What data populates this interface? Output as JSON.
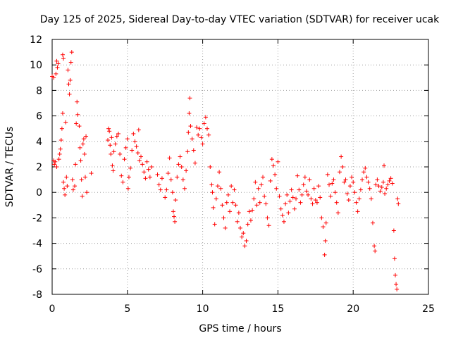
{
  "chart_data": {
    "type": "scatter",
    "title": "Day 125 of 2025, Sidereal Day-to-day VTEC variation (SDTVAR) for receiver ucak",
    "xlabel": "GPS time / hours",
    "ylabel": "SDTVAR / TECUs",
    "xlim": [
      0,
      25
    ],
    "ylim": [
      -8,
      12
    ],
    "xticks": [
      "0",
      "5",
      "10",
      "15",
      "20",
      "25"
    ],
    "yticks": [
      "12",
      "10",
      "8",
      "6",
      "4",
      "2",
      "0",
      "-2",
      "-4",
      "-6",
      "-8"
    ],
    "grid": true,
    "marker": "+",
    "color": "#ff0000",
    "series": [
      {
        "name": "SDTVAR",
        "points": [
          [
            0.0,
            9.1
          ],
          [
            0.1,
            9.0
          ],
          [
            0.1,
            2.5
          ],
          [
            0.15,
            2.2
          ],
          [
            0.2,
            2.4
          ],
          [
            0.25,
            9.3
          ],
          [
            0.3,
            10.3
          ],
          [
            0.3,
            2.0
          ],
          [
            0.35,
            9.8
          ],
          [
            0.4,
            10.1
          ],
          [
            0.45,
            2.6
          ],
          [
            0.5,
            3.0
          ],
          [
            0.55,
            3.4
          ],
          [
            0.6,
            4.1
          ],
          [
            0.65,
            5.0
          ],
          [
            0.7,
            6.2
          ],
          [
            0.7,
            10.8
          ],
          [
            0.75,
            10.5
          ],
          [
            0.75,
            0.8
          ],
          [
            0.8,
            0.3
          ],
          [
            0.85,
            -0.2
          ],
          [
            0.9,
            5.5
          ],
          [
            0.95,
            1.2
          ],
          [
            1.0,
            0.5
          ],
          [
            1.05,
            9.6
          ],
          [
            1.1,
            8.5
          ],
          [
            1.15,
            7.7
          ],
          [
            1.2,
            8.8
          ],
          [
            1.25,
            10.2
          ],
          [
            1.3,
            11.0
          ],
          [
            1.35,
            1.0
          ],
          [
            1.4,
            0.2
          ],
          [
            1.5,
            0.5
          ],
          [
            1.55,
            2.2
          ],
          [
            1.6,
            5.4
          ],
          [
            1.65,
            7.1
          ],
          [
            1.7,
            6.1
          ],
          [
            1.8,
            5.2
          ],
          [
            1.85,
            3.5
          ],
          [
            1.9,
            2.5
          ],
          [
            1.95,
            1.0
          ],
          [
            2.0,
            -0.3
          ],
          [
            2.05,
            3.8
          ],
          [
            2.1,
            4.2
          ],
          [
            2.15,
            3.0
          ],
          [
            2.2,
            1.2
          ],
          [
            2.25,
            4.4
          ],
          [
            2.3,
            0.0
          ],
          [
            2.6,
            1.5
          ],
          [
            3.7,
            4.1
          ],
          [
            3.75,
            5.0
          ],
          [
            3.8,
            4.8
          ],
          [
            3.85,
            3.7
          ],
          [
            3.9,
            3.0
          ],
          [
            3.95,
            4.3
          ],
          [
            4.0,
            2.1
          ],
          [
            4.05,
            1.7
          ],
          [
            4.1,
            3.2
          ],
          [
            4.2,
            3.8
          ],
          [
            4.3,
            4.4
          ],
          [
            4.4,
            4.6
          ],
          [
            4.5,
            3.0
          ],
          [
            4.6,
            1.3
          ],
          [
            4.7,
            0.8
          ],
          [
            4.8,
            2.6
          ],
          [
            4.9,
            3.5
          ],
          [
            5.0,
            4.2
          ],
          [
            5.05,
            0.3
          ],
          [
            5.1,
            1.2
          ],
          [
            5.2,
            1.9
          ],
          [
            5.3,
            3.3
          ],
          [
            5.4,
            4.6
          ],
          [
            5.5,
            4.0
          ],
          [
            5.6,
            3.6
          ],
          [
            5.7,
            3.1
          ],
          [
            5.75,
            4.9
          ],
          [
            5.8,
            2.5
          ],
          [
            5.9,
            2.8
          ],
          [
            6.0,
            2.2
          ],
          [
            6.1,
            1.6
          ],
          [
            6.2,
            1.1
          ],
          [
            6.3,
            2.4
          ],
          [
            6.4,
            1.8
          ],
          [
            6.5,
            1.2
          ],
          [
            6.6,
            2.0
          ],
          [
            7.0,
            1.4
          ],
          [
            7.1,
            0.6
          ],
          [
            7.2,
            0.2
          ],
          [
            7.3,
            1.1
          ],
          [
            7.5,
            -0.4
          ],
          [
            7.6,
            0.2
          ],
          [
            7.7,
            1.5
          ],
          [
            7.8,
            2.7
          ],
          [
            7.9,
            1.0
          ],
          [
            8.0,
            0.0
          ],
          [
            8.05,
            -1.5
          ],
          [
            8.1,
            -1.9
          ],
          [
            8.15,
            -2.3
          ],
          [
            8.2,
            -0.6
          ],
          [
            8.3,
            1.2
          ],
          [
            8.4,
            2.2
          ],
          [
            8.5,
            2.8
          ],
          [
            8.6,
            2.0
          ],
          [
            8.7,
            1.0
          ],
          [
            8.8,
            0.3
          ],
          [
            8.9,
            1.7
          ],
          [
            9.0,
            3.2
          ],
          [
            9.05,
            4.7
          ],
          [
            9.1,
            6.2
          ],
          [
            9.15,
            7.4
          ],
          [
            9.2,
            5.2
          ],
          [
            9.3,
            4.2
          ],
          [
            9.4,
            3.3
          ],
          [
            9.5,
            2.3
          ],
          [
            9.6,
            5.1
          ],
          [
            9.7,
            4.5
          ],
          [
            9.8,
            5.0
          ],
          [
            9.9,
            4.3
          ],
          [
            10.0,
            3.8
          ],
          [
            10.1,
            5.4
          ],
          [
            10.2,
            5.9
          ],
          [
            10.3,
            5.0
          ],
          [
            10.4,
            4.5
          ],
          [
            10.5,
            2.0
          ],
          [
            10.6,
            0.6
          ],
          [
            10.65,
            0.0
          ],
          [
            10.7,
            -1.2
          ],
          [
            10.8,
            -2.5
          ],
          [
            10.9,
            -0.5
          ],
          [
            11.0,
            0.5
          ],
          [
            11.1,
            1.6
          ],
          [
            11.2,
            0.3
          ],
          [
            11.3,
            -1.0
          ],
          [
            11.4,
            -2.0
          ],
          [
            11.5,
            -2.8
          ],
          [
            11.6,
            -0.8
          ],
          [
            11.7,
            -0.2
          ],
          [
            11.8,
            -1.5
          ],
          [
            11.9,
            0.5
          ],
          [
            12.0,
            -0.8
          ],
          [
            12.1,
            0.2
          ],
          [
            12.2,
            -1.0
          ],
          [
            12.3,
            -2.3
          ],
          [
            12.4,
            -1.6
          ],
          [
            12.5,
            -2.8
          ],
          [
            12.6,
            -3.5
          ],
          [
            12.7,
            -3.2
          ],
          [
            12.8,
            -4.2
          ],
          [
            12.9,
            -3.8
          ],
          [
            13.0,
            -2.5
          ],
          [
            13.1,
            -1.5
          ],
          [
            13.2,
            -2.2
          ],
          [
            13.3,
            -1.4
          ],
          [
            13.4,
            -0.5
          ],
          [
            13.5,
            0.8
          ],
          [
            13.6,
            -1.0
          ],
          [
            13.7,
            0.3
          ],
          [
            13.8,
            -0.8
          ],
          [
            13.9,
            0.6
          ],
          [
            14.0,
            1.2
          ],
          [
            14.1,
            -0.3
          ],
          [
            14.2,
            -0.9
          ],
          [
            14.3,
            -2.0
          ],
          [
            14.4,
            -2.6
          ],
          [
            14.5,
            0.9
          ],
          [
            14.6,
            2.6
          ],
          [
            14.7,
            2.1
          ],
          [
            14.8,
            1.4
          ],
          [
            14.9,
            0.3
          ],
          [
            15.0,
            2.4
          ],
          [
            15.1,
            -0.3
          ],
          [
            15.2,
            -1.3
          ],
          [
            15.3,
            -1.8
          ],
          [
            15.4,
            -2.3
          ],
          [
            15.5,
            -0.9
          ],
          [
            15.6,
            -0.2
          ],
          [
            15.7,
            -1.6
          ],
          [
            15.8,
            -0.7
          ],
          [
            15.9,
            0.2
          ],
          [
            16.0,
            -0.4
          ],
          [
            16.1,
            -1.3
          ],
          [
            16.2,
            -0.5
          ],
          [
            16.3,
            1.3
          ],
          [
            16.4,
            0.2
          ],
          [
            16.5,
            -0.8
          ],
          [
            16.6,
            -0.2
          ],
          [
            16.7,
            0.6
          ],
          [
            16.8,
            1.2
          ],
          [
            16.9,
            0.1
          ],
          [
            17.0,
            -0.2
          ],
          [
            17.1,
            1.0
          ],
          [
            17.2,
            -0.5
          ],
          [
            17.3,
            -0.9
          ],
          [
            17.4,
            0.3
          ],
          [
            17.5,
            -0.6
          ],
          [
            17.6,
            -0.8
          ],
          [
            17.7,
            0.5
          ],
          [
            17.8,
            -0.4
          ],
          [
            17.9,
            -2.0
          ],
          [
            18.0,
            -2.7
          ],
          [
            18.1,
            -4.9
          ],
          [
            18.15,
            -3.8
          ],
          [
            18.2,
            -2.4
          ],
          [
            18.3,
            1.4
          ],
          [
            18.4,
            0.6
          ],
          [
            18.5,
            -0.3
          ],
          [
            18.6,
            0.7
          ],
          [
            18.7,
            1.0
          ],
          [
            18.8,
            0.0
          ],
          [
            18.9,
            -0.8
          ],
          [
            19.0,
            -1.6
          ],
          [
            19.1,
            1.6
          ],
          [
            19.2,
            2.8
          ],
          [
            19.3,
            2.0
          ],
          [
            19.4,
            0.8
          ],
          [
            19.5,
            1.0
          ],
          [
            19.6,
            -0.1
          ],
          [
            19.7,
            -0.6
          ],
          [
            19.8,
            0.5
          ],
          [
            19.9,
            1.2
          ],
          [
            20.0,
            0.8
          ],
          [
            20.1,
            0.0
          ],
          [
            20.2,
            -0.8
          ],
          [
            20.3,
            -1.5
          ],
          [
            20.4,
            -0.5
          ],
          [
            20.5,
            0.2
          ],
          [
            20.6,
            1.0
          ],
          [
            20.7,
            1.6
          ],
          [
            20.8,
            1.9
          ],
          [
            20.9,
            1.2
          ],
          [
            21.0,
            0.8
          ],
          [
            21.1,
            0.3
          ],
          [
            21.2,
            -0.5
          ],
          [
            21.3,
            -2.4
          ],
          [
            21.4,
            -4.2
          ],
          [
            21.45,
            -4.6
          ],
          [
            21.5,
            0.6
          ],
          [
            21.6,
            1.0
          ],
          [
            21.7,
            0.5
          ],
          [
            21.8,
            0.1
          ],
          [
            21.9,
            0.4
          ],
          [
            22.0,
            0.8
          ],
          [
            22.05,
            2.1
          ],
          [
            22.1,
            -0.1
          ],
          [
            22.2,
            0.3
          ],
          [
            22.3,
            0.6
          ],
          [
            22.4,
            0.9
          ],
          [
            22.5,
            1.1
          ],
          [
            22.6,
            0.7
          ],
          [
            22.7,
            -3.0
          ],
          [
            22.75,
            -5.2
          ],
          [
            22.8,
            -6.5
          ],
          [
            22.85,
            -7.2
          ],
          [
            22.9,
            -7.6
          ],
          [
            22.95,
            -0.5
          ],
          [
            23.0,
            -0.9
          ]
        ]
      }
    ]
  }
}
